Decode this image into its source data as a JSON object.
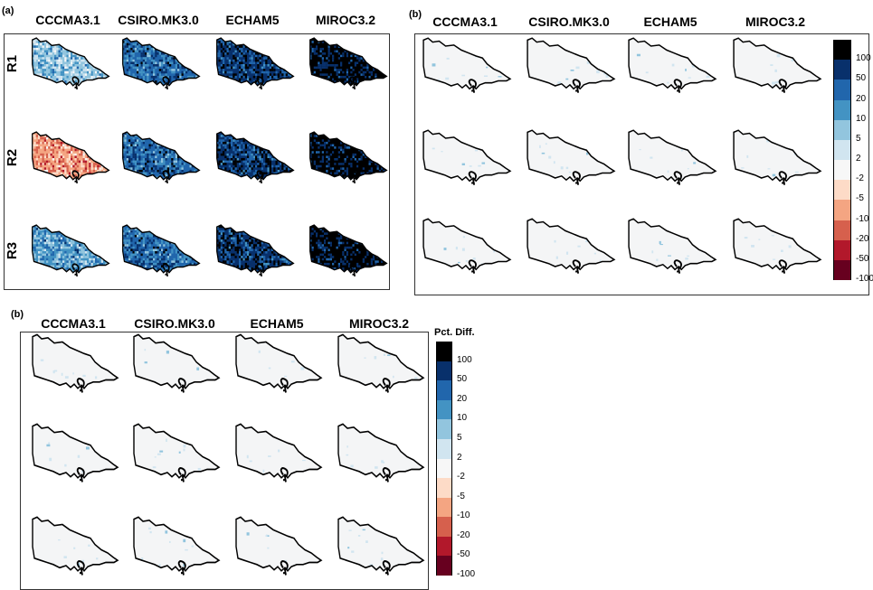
{
  "panels": [
    {
      "label": "(a)",
      "kind": "anomaly",
      "models": [
        "CCCMA3.1",
        "CSIRO.MK3.0",
        "ECHAM5",
        "MIROC3.2"
      ],
      "rows": [
        "R1",
        "R2",
        "R3"
      ]
    },
    {
      "label": "(b)",
      "kind": "difference",
      "models": [
        "CCCMA3.1",
        "CSIRO.MK3.0",
        "ECHAM5",
        "MIROC3.2"
      ]
    },
    {
      "label": "(b)",
      "kind": "difference",
      "models": [
        "CCCMA3.1",
        "CSIRO.MK3.0",
        "ECHAM5",
        "MIROC3.2"
      ]
    }
  ],
  "legends": [
    {
      "title": "",
      "ticks": [
        "100",
        "50",
        "20",
        "10",
        "5",
        "2",
        "-2",
        "-5",
        "-10",
        "-20",
        "-50",
        "-100"
      ]
    },
    {
      "title": "Pct. Diff.",
      "ticks": [
        "100",
        "50",
        "20",
        "10",
        "5",
        "2",
        "-2",
        "-5",
        "-10",
        "-20",
        "-50",
        "-100"
      ]
    }
  ],
  "colors": {
    "scale": [
      "#000000",
      "#08306b",
      "#2166ac",
      "#4393c3",
      "#92c5de",
      "#d1e5f0",
      "#f7f7f7",
      "#fddbc7",
      "#f4a582",
      "#d6604d",
      "#b2182b",
      "#67001f"
    ],
    "land_background": "#f4f5f6",
    "outline": "#000000"
  },
  "chart_data": {
    "type": "heatmap",
    "title": "",
    "xlabel": "",
    "ylabel": "",
    "legend_title": "Pct. Diff.",
    "legend_bins": [
      100,
      50,
      20,
      10,
      5,
      2,
      -2,
      -5,
      -10,
      -20,
      -50,
      -100
    ],
    "models": [
      "CCCMA3.1",
      "CSIRO.MK3.0",
      "ECHAM5",
      "MIROC3.2"
    ],
    "rows": [
      "R1",
      "R2",
      "R3"
    ],
    "panel_a_dominant_bin": [
      {
        "row": "R1",
        "values": [
          5,
          20,
          50,
          100
        ]
      },
      {
        "row": "R2",
        "values": [
          -10,
          20,
          50,
          100
        ]
      },
      {
        "row": "R3",
        "values": [
          10,
          20,
          50,
          100
        ]
      }
    ],
    "panel_b_dominant_bin": [
      {
        "row": "R1",
        "values": [
          2,
          2,
          2,
          2
        ]
      },
      {
        "row": "R2",
        "values": [
          2,
          2,
          2,
          2
        ]
      },
      {
        "row": "R3",
        "values": [
          2,
          2,
          2,
          2
        ]
      }
    ]
  }
}
